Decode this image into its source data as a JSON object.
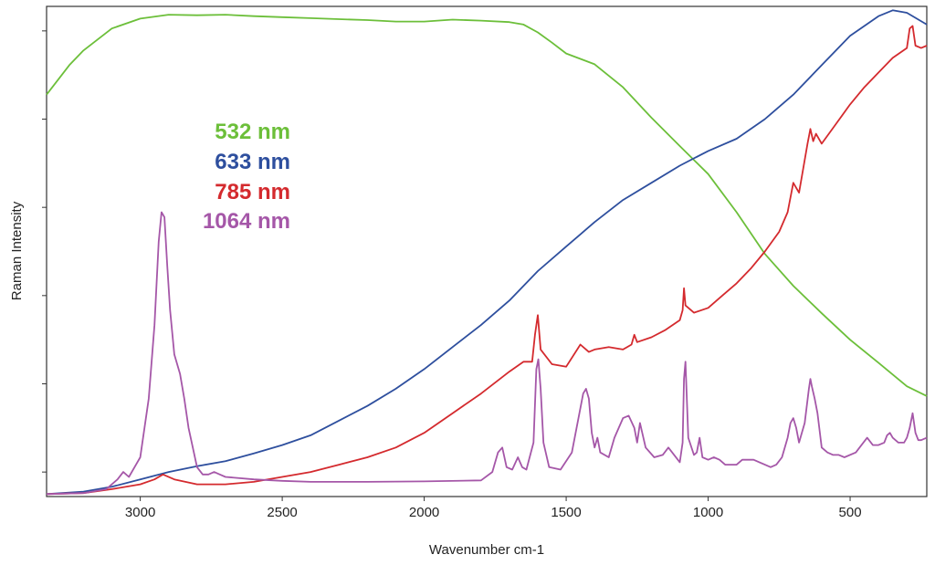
{
  "chart_data": {
    "type": "line",
    "title": "",
    "xlabel": "Wavenumber cm-1",
    "ylabel": "Raman Intensity",
    "xlim": [
      3330,
      230
    ],
    "ylim": [
      0,
      100
    ],
    "x_inverted": true,
    "xticks": [
      3000,
      2500,
      2000,
      1500,
      1000,
      500
    ],
    "xtick_labels": [
      "3000",
      "2500",
      "2000",
      "1500",
      "1000",
      "500"
    ],
    "yticks": [
      5,
      23,
      41,
      59,
      77,
      95
    ],
    "ytick_labels": [
      "",
      "",
      "",
      "",
      "",
      ""
    ],
    "grid": false,
    "legend_position": "upper-left",
    "series": [
      {
        "name": "532 nm",
        "label": "532 nm",
        "color": "#6cbf3a",
        "x": [
          3330,
          3250,
          3200,
          3100,
          3000,
          2900,
          2800,
          2700,
          2600,
          2500,
          2400,
          2300,
          2200,
          2100,
          2000,
          1900,
          1800,
          1700,
          1650,
          1600,
          1550,
          1500,
          1400,
          1300,
          1200,
          1100,
          1000,
          900,
          800,
          700,
          600,
          500,
          400,
          300,
          230
        ],
        "y": [
          82,
          88,
          91,
          95.5,
          97.5,
          98.3,
          98.2,
          98.3,
          98,
          97.8,
          97.6,
          97.4,
          97.2,
          96.9,
          96.9,
          97.3,
          97.1,
          96.8,
          96.3,
          94.7,
          92.6,
          90.4,
          88.2,
          83.5,
          77.3,
          71.5,
          65.8,
          58,
          49.5,
          43,
          37.4,
          32,
          27.3,
          22.5,
          20.5
        ]
      },
      {
        "name": "633 nm",
        "label": "633 nm",
        "color": "#2e4f9e",
        "x": [
          3330,
          3200,
          3100,
          3000,
          2900,
          2800,
          2700,
          2600,
          2500,
          2400,
          2300,
          2200,
          2100,
          2000,
          1900,
          1800,
          1700,
          1600,
          1500,
          1400,
          1300,
          1200,
          1100,
          1000,
          900,
          800,
          700,
          600,
          500,
          400,
          350,
          300,
          230
        ],
        "y": [
          0.5,
          1,
          2,
          3.5,
          5,
          6.2,
          7.2,
          8.8,
          10.5,
          12.5,
          15.5,
          18.5,
          22,
          26,
          30.5,
          35,
          40,
          46,
          51,
          56,
          60.5,
          64,
          67.5,
          70.5,
          73,
          77,
          82,
          88,
          94,
          98,
          99.2,
          98.7,
          96.3
        ]
      },
      {
        "name": "785 nm",
        "label": "785 nm",
        "color": "#d42a2e",
        "x": [
          3330,
          3200,
          3100,
          3000,
          2950,
          2920,
          2880,
          2800,
          2700,
          2600,
          2500,
          2400,
          2300,
          2200,
          2100,
          2000,
          1900,
          1800,
          1700,
          1650,
          1620,
          1610,
          1600,
          1590,
          1550,
          1500,
          1450,
          1420,
          1400,
          1350,
          1300,
          1270,
          1260,
          1250,
          1200,
          1150,
          1100,
          1090,
          1085,
          1080,
          1050,
          1000,
          950,
          900,
          850,
          800,
          750,
          720,
          700,
          680,
          650,
          640,
          630,
          620,
          600,
          550,
          500,
          450,
          400,
          350,
          300,
          290,
          280,
          270,
          250,
          230
        ],
        "y": [
          0.5,
          0.7,
          1.5,
          2.5,
          3.5,
          4.5,
          3.5,
          2.5,
          2.5,
          3,
          4,
          5,
          6.5,
          8,
          10,
          13,
          17,
          21,
          25.5,
          27.5,
          27.5,
          33,
          37,
          30,
          27,
          26.5,
          31,
          29.5,
          30,
          30.5,
          30,
          31,
          33,
          31.5,
          32.5,
          34,
          36,
          38,
          42.5,
          39,
          37.5,
          38.5,
          41,
          43.5,
          46.5,
          50,
          54,
          58,
          64,
          62,
          72,
          75,
          72.5,
          74,
          72,
          76,
          80,
          83.5,
          86.5,
          89.5,
          91.5,
          95.5,
          96,
          92,
          91.5,
          92
        ]
      },
      {
        "name": "1064 nm",
        "label": "1064 nm",
        "color": "#a557a8",
        "x": [
          3330,
          3200,
          3120,
          3080,
          3060,
          3040,
          3000,
          2970,
          2950,
          2935,
          2925,
          2915,
          2905,
          2895,
          2880,
          2860,
          2845,
          2830,
          2800,
          2780,
          2760,
          2740,
          2720,
          2700,
          2600,
          2500,
          2400,
          2200,
          2000,
          1800,
          1760,
          1740,
          1725,
          1710,
          1690,
          1670,
          1655,
          1640,
          1615,
          1605,
          1598,
          1590,
          1580,
          1560,
          1520,
          1480,
          1460,
          1450,
          1440,
          1430,
          1420,
          1410,
          1400,
          1390,
          1380,
          1350,
          1330,
          1300,
          1280,
          1260,
          1250,
          1240,
          1220,
          1190,
          1160,
          1140,
          1100,
          1090,
          1085,
          1080,
          1070,
          1050,
          1040,
          1030,
          1020,
          1000,
          980,
          960,
          940,
          900,
          880,
          840,
          800,
          780,
          760,
          740,
          720,
          710,
          700,
          690,
          680,
          660,
          645,
          640,
          635,
          625,
          615,
          600,
          580,
          560,
          540,
          520,
          480,
          460,
          440,
          420,
          400,
          380,
          370,
          360,
          350,
          330,
          310,
          300,
          290,
          280,
          270,
          260,
          250,
          230
        ],
        "y": [
          0.5,
          0.7,
          1.5,
          3.5,
          5,
          4,
          8,
          20,
          35,
          52,
          58,
          57,
          47,
          38,
          29,
          25,
          20,
          14,
          6,
          4.5,
          4.5,
          5,
          4.5,
          4,
          3.5,
          3.2,
          3,
          3,
          3.1,
          3.3,
          5,
          9,
          10,
          6,
          5.5,
          8,
          6,
          5.5,
          11,
          26,
          28,
          22,
          11,
          6,
          5.5,
          9,
          15,
          18,
          21,
          22,
          20,
          13,
          10,
          12,
          9,
          8,
          12,
          16,
          16.5,
          14,
          11,
          15,
          10,
          8,
          8.5,
          10,
          7,
          11,
          24,
          27.5,
          12,
          8.5,
          9,
          12,
          8,
          7.5,
          8,
          7.5,
          6.5,
          6.5,
          7.5,
          7.5,
          6.5,
          6,
          6.5,
          8,
          12,
          15,
          16,
          14,
          11,
          15,
          22,
          24,
          22.5,
          20,
          17,
          10,
          9,
          8.5,
          8.5,
          8,
          9,
          10.5,
          12,
          10.5,
          10.5,
          11,
          12.5,
          13,
          12,
          11,
          11,
          12,
          14,
          17,
          13,
          11.5,
          11.5,
          12
        ]
      }
    ]
  }
}
